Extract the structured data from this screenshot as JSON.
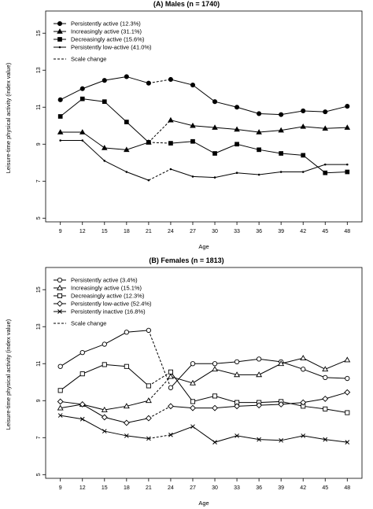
{
  "chart_data": [
    {
      "type": "line",
      "panel": "(A)",
      "title": "Males (n = 1740)",
      "xlabel": "Age",
      "ylabel": "Leisure-time physical activity (index value)",
      "x": [
        9,
        12,
        15,
        18,
        21,
        24,
        27,
        30,
        33,
        36,
        39,
        42,
        45,
        48
      ],
      "xlim": [
        7,
        50
      ],
      "ylim": [
        4.8,
        16.2
      ],
      "yticks": [
        5,
        7,
        9,
        11,
        13,
        15
      ],
      "grid": false,
      "legend_position": "top-left",
      "scale_change_between": [
        21,
        24
      ],
      "series": [
        {
          "name": "Persistently active (12.3%)",
          "marker": "filled-circle",
          "values": [
            11.4,
            12.0,
            12.45,
            12.65,
            12.3,
            12.5,
            12.2,
            11.3,
            11.0,
            10.65,
            10.6,
            10.8,
            10.75,
            11.05
          ]
        },
        {
          "name": "Increasingly active (31.1%)",
          "marker": "filled-triangle",
          "values": [
            9.65,
            9.65,
            8.8,
            8.7,
            9.1,
            10.3,
            10.0,
            9.9,
            9.8,
            9.65,
            9.75,
            9.95,
            9.85,
            9.9
          ]
        },
        {
          "name": "Decreasingly active (15.6%)",
          "marker": "filled-square",
          "values": [
            10.5,
            11.45,
            11.3,
            10.2,
            9.1,
            9.05,
            9.15,
            8.5,
            9.0,
            8.7,
            8.5,
            8.4,
            7.45,
            7.5
          ]
        },
        {
          "name": "Persistently low-active (41.0%)",
          "marker": "small-dot",
          "values": [
            9.2,
            9.2,
            8.1,
            7.5,
            7.05,
            7.65,
            7.25,
            7.2,
            7.45,
            7.35,
            7.5,
            7.5,
            7.9,
            7.9
          ]
        }
      ],
      "extra_legend": "Scale change"
    },
    {
      "type": "line",
      "panel": "(B)",
      "title": "Females (n = 1813)",
      "xlabel": "Age",
      "ylabel": "Leisure-time physical activity (index value)",
      "x": [
        9,
        12,
        15,
        18,
        21,
        24,
        27,
        30,
        33,
        36,
        39,
        42,
        45,
        48
      ],
      "xlim": [
        7,
        50
      ],
      "ylim": [
        4.8,
        16.2
      ],
      "yticks": [
        5,
        7,
        9,
        11,
        13,
        15
      ],
      "grid": false,
      "legend_position": "top-left",
      "scale_change_between": [
        21,
        24
      ],
      "series": [
        {
          "name": "Persistently active (3.4%)",
          "marker": "open-circle",
          "values": [
            10.85,
            11.6,
            12.05,
            12.7,
            12.8,
            9.7,
            11.0,
            11.0,
            11.1,
            11.25,
            11.1,
            10.7,
            10.25,
            10.2
          ]
        },
        {
          "name": "Increasingly active (15.1%)",
          "marker": "open-triangle",
          "values": [
            8.6,
            8.8,
            8.5,
            8.7,
            9.0,
            10.3,
            9.95,
            10.7,
            10.4,
            10.4,
            11.0,
            11.3,
            10.7,
            11.2
          ]
        },
        {
          "name": "Decreasingly active (12.3%)",
          "marker": "open-square",
          "values": [
            9.55,
            10.45,
            10.95,
            10.85,
            9.8,
            10.55,
            8.95,
            9.25,
            8.9,
            8.9,
            8.95,
            8.7,
            8.55,
            8.35
          ]
        },
        {
          "name": "Persistently low-active (52.4%)",
          "marker": "open-diamond",
          "values": [
            8.95,
            8.8,
            8.1,
            7.8,
            8.05,
            8.7,
            8.6,
            8.6,
            8.7,
            8.75,
            8.8,
            8.9,
            9.1,
            9.45
          ]
        },
        {
          "name": "Persistently inactive (16.8%)",
          "marker": "x",
          "values": [
            8.2,
            8.0,
            7.35,
            7.1,
            6.95,
            7.15,
            7.6,
            6.75,
            7.1,
            6.9,
            6.85,
            7.1,
            6.9,
            6.75
          ]
        }
      ],
      "extra_legend": "Scale change"
    }
  ]
}
